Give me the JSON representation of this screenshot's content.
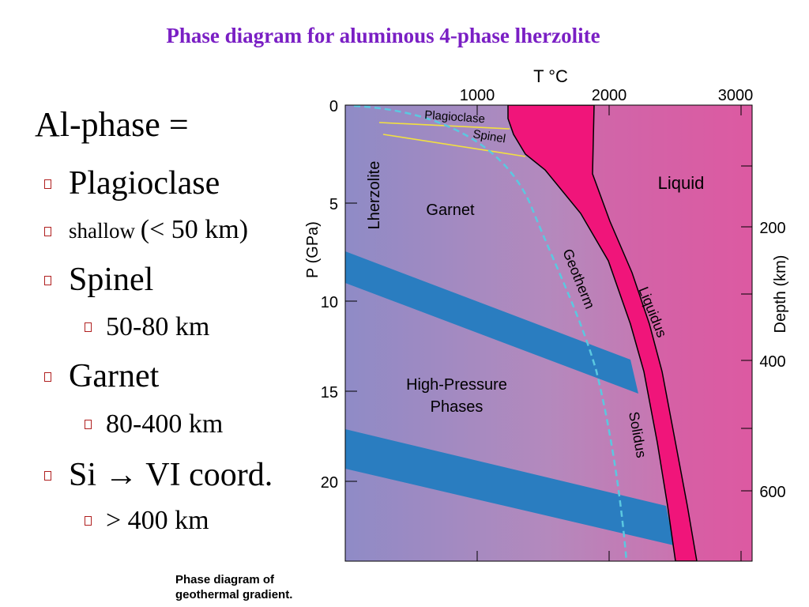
{
  "title": "Phase diagram for aluminous 4-phase lherzolite",
  "heading": "Al-phase =",
  "list": {
    "plagioclase": "Plagioclase",
    "shallow_text": "shallow",
    "shallow_range": "(< 50 km)",
    "spinel": "Spinel",
    "spinel_range": "50-80 km",
    "garnet": "Garnet",
    "garnet_range": "80-400 km",
    "si": "Si → VI coord.",
    "si_range": "> 400 km"
  },
  "caption": {
    "line1": "Phase diagram of",
    "line2": "geothermal gradient."
  },
  "diagram": {
    "top_axis_title": "T °C",
    "top_ticks": [
      "1000",
      "2000",
      "3000"
    ],
    "left_axis_title": "P (GPa)",
    "left_ticks": [
      "0",
      "5",
      "10",
      "15",
      "20"
    ],
    "right_axis_title": "Depth (km)",
    "right_ticks": [
      "200",
      "400",
      "600"
    ],
    "labels": {
      "plagioclase": "Plagioclase",
      "spinel": "Spinel",
      "lherzolite": "Lherzolite",
      "garnet": "Garnet",
      "liquid": "Liquid",
      "geotherm": "Geotherm",
      "liquidus": "Liquidus",
      "solidus": "Solidus",
      "high_pressure_1": "High-Pressure",
      "high_pressure_2": "Phases"
    },
    "colors": {
      "liquid_region": "#e8449a",
      "melt_band": "#f0157a",
      "hp_band": "#2a7dc0",
      "geotherm": "#5bc8e0",
      "plag_spinel_lines": "#f2e040"
    }
  }
}
